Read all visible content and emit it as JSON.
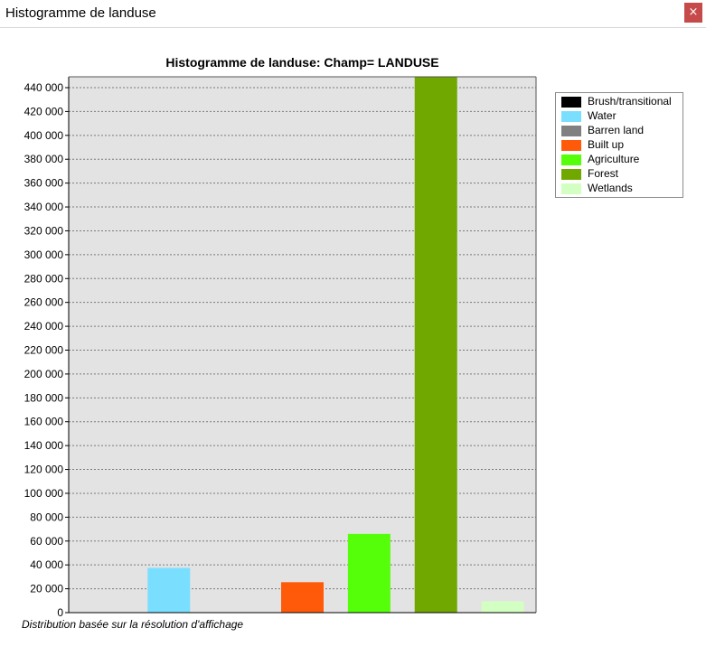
{
  "window": {
    "title": "Histogramme de landuse",
    "close_label": "×"
  },
  "footer_note": "Distribution basée sur la résolution d'affichage",
  "chart_data": {
    "type": "bar",
    "title": "Histogramme de landuse: Champ= LANDUSE",
    "xlabel": "",
    "ylabel": "",
    "ylim": [
      0,
      450000
    ],
    "grid": true,
    "legend_position": "right",
    "yticks": [
      0,
      20000,
      40000,
      60000,
      80000,
      100000,
      120000,
      140000,
      160000,
      180000,
      200000,
      220000,
      240000,
      260000,
      280000,
      300000,
      320000,
      340000,
      360000,
      380000,
      400000,
      420000,
      440000
    ],
    "ytick_labels": [
      "0",
      "20 000",
      "40 000",
      "60 000",
      "80 000",
      "100 000",
      "120 000",
      "140 000",
      "160 000",
      "180 000",
      "200 000",
      "220 000",
      "240 000",
      "260 000",
      "280 000",
      "300 000",
      "320 000",
      "340 000",
      "360 000",
      "380 000",
      "400 000",
      "420 000",
      "440 000"
    ],
    "categories": [
      "Brush/transitional",
      "Water",
      "Barren land",
      "Built up",
      "Agriculture",
      "Forest",
      "Wetlands"
    ],
    "values": [
      0,
      37500,
      0,
      25500,
      66000,
      449000,
      9500
    ],
    "colors": [
      "#000000",
      "#7adfff",
      "#808080",
      "#ff5a0a",
      "#55ff0a",
      "#70a800",
      "#d4ffc2"
    ]
  }
}
